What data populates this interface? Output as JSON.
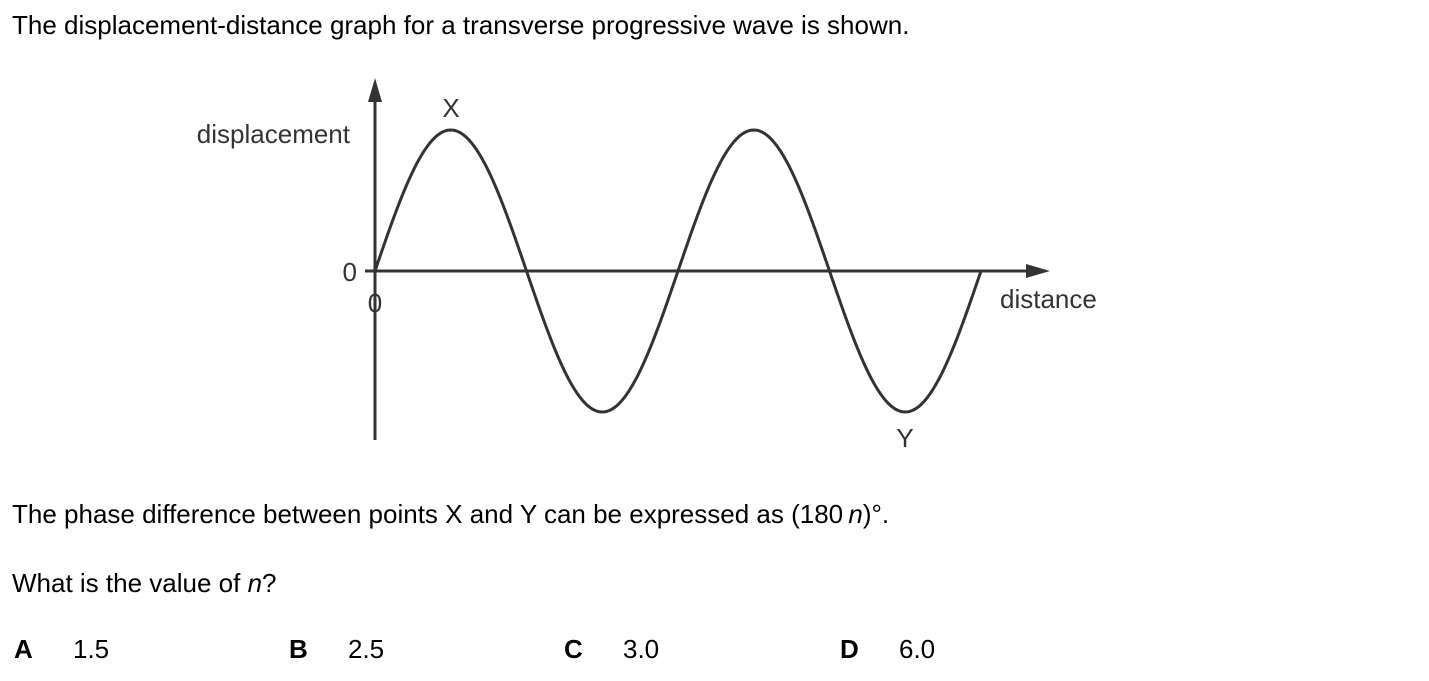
{
  "question": {
    "intro": "The displacement-distance graph for a transverse progressive wave is shown.",
    "phase_prefix": "The phase difference between points X and Y can be expressed as (180 ",
    "phase_var": "n",
    "phase_suffix": ")°.",
    "ask_prefix": "What is the value of ",
    "ask_var": "n",
    "ask_suffix": "?"
  },
  "diagram": {
    "y_axis_label": "displacement",
    "x_axis_label": "distance",
    "y_origin_label": "0",
    "x_origin_label": "0",
    "point_x_label": "X",
    "point_y_label": "Y",
    "wavelengths_shown": 2.0
  },
  "options": [
    {
      "letter": "A",
      "value": "1.5"
    },
    {
      "letter": "B",
      "value": "2.5"
    },
    {
      "letter": "C",
      "value": "3.0"
    },
    {
      "letter": "D",
      "value": "6.0"
    }
  ]
}
